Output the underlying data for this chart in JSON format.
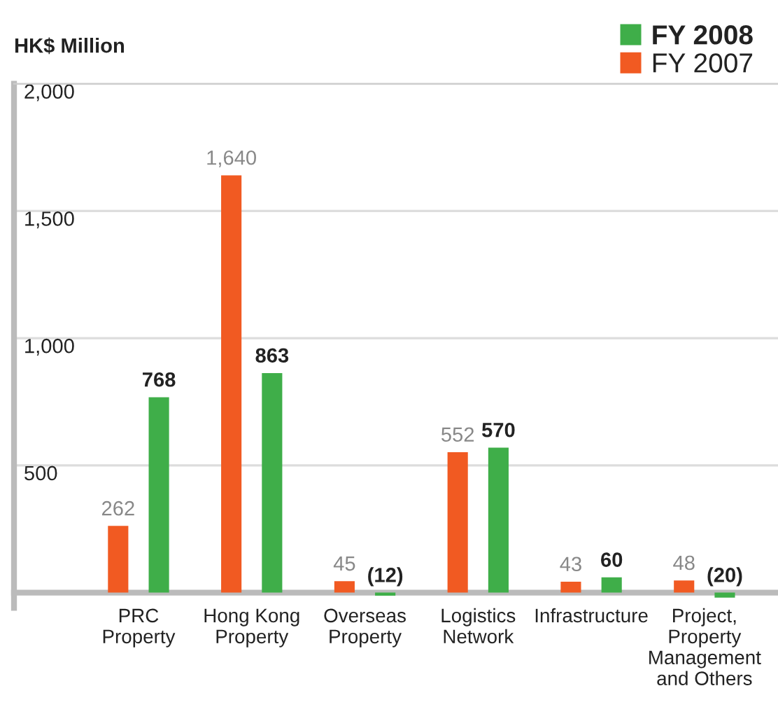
{
  "chart_data": {
    "type": "bar",
    "ylabel": "HK$ Million",
    "categories": [
      "PRC\nProperty",
      "Hong Kong\nProperty",
      "Overseas\nProperty",
      "Logistics\nNetwork",
      "Infrastructure",
      "Project,\nProperty\nManagement\nand Others"
    ],
    "series": [
      {
        "name": "FY 2007",
        "color": "#f15a22",
        "values": [
          262,
          1640,
          45,
          552,
          43,
          48
        ],
        "value_labels": [
          "262",
          "1,640",
          "45",
          "552",
          "43",
          "48"
        ]
      },
      {
        "name": "FY 2008",
        "color": "#3fae49",
        "values": [
          768,
          863,
          -12,
          570,
          60,
          -20
        ],
        "value_labels": [
          "768",
          "863",
          "(12)",
          "570",
          "60",
          "(20)"
        ]
      }
    ],
    "ylim": [
      -60,
      2000
    ],
    "yticks": [
      {
        "value": 0,
        "label": null
      },
      {
        "value": 500,
        "label": "500"
      },
      {
        "value": 1000,
        "label": "1,000"
      },
      {
        "value": 1500,
        "label": "1,500"
      },
      {
        "value": 2000,
        "label": "2,000"
      }
    ],
    "grid": "y",
    "legend": "top right"
  }
}
